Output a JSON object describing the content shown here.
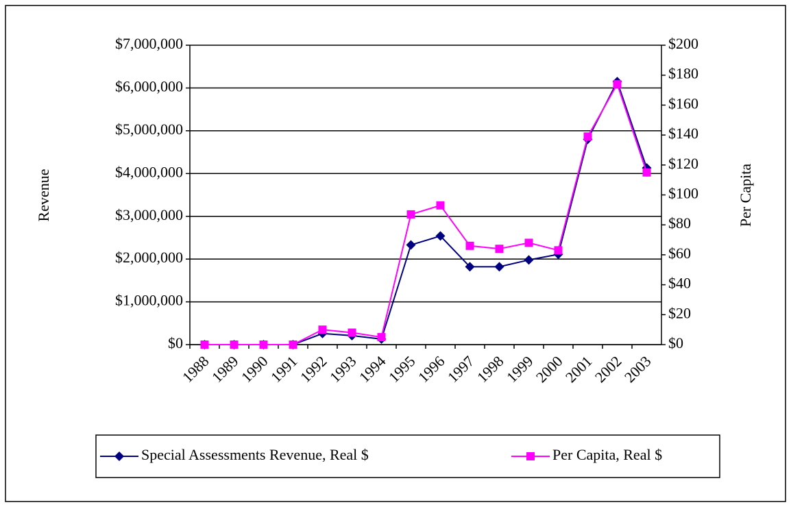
{
  "chart_data": {
    "type": "line",
    "categories": [
      "1988",
      "1989",
      "1990",
      "1991",
      "1992",
      "1993",
      "1994",
      "1995",
      "1996",
      "1997",
      "1998",
      "1999",
      "2000",
      "2001",
      "2002",
      "2003"
    ],
    "y_label": "Revenue",
    "y2_label": "Per Capita",
    "series": [
      {
        "name": "Special Assessments Revenue, Real $",
        "color": "#000080",
        "marker": "diamond",
        "values": [
          0,
          0,
          0,
          0,
          260000,
          210000,
          130000,
          2330000,
          2540000,
          1820000,
          1820000,
          1980000,
          2110000,
          4800000,
          6150000,
          4130000
        ]
      },
      {
        "name": "Per Capita, Real $",
        "color": "#ff00ff",
        "marker": "square",
        "axis": "y2",
        "values": [
          0,
          0,
          0,
          0,
          10,
          8,
          5,
          87,
          93,
          66,
          64,
          68,
          63,
          139,
          174,
          115
        ]
      }
    ],
    "ylim": [
      0,
      7000000
    ],
    "yticks": [
      {
        "value": 0,
        "label": "$0"
      },
      {
        "value": 1000000,
        "label": "$1,000,000"
      },
      {
        "value": 2000000,
        "label": "$2,000,000"
      },
      {
        "value": 3000000,
        "label": "$3,000,000"
      },
      {
        "value": 4000000,
        "label": "$4,000,000"
      },
      {
        "value": 5000000,
        "label": "$5,000,000"
      },
      {
        "value": 6000000,
        "label": "$6,000,000"
      },
      {
        "value": 7000000,
        "label": "$7,000,000"
      }
    ],
    "y2lim": [
      0,
      200
    ],
    "y2ticks": [
      {
        "value": 0,
        "label": "$0"
      },
      {
        "value": 20,
        "label": "$20"
      },
      {
        "value": 40,
        "label": "$40"
      },
      {
        "value": 60,
        "label": "$60"
      },
      {
        "value": 80,
        "label": "$80"
      },
      {
        "value": 100,
        "label": "$100"
      },
      {
        "value": 120,
        "label": "$120"
      },
      {
        "value": 140,
        "label": "$140"
      },
      {
        "value": 160,
        "label": "$160"
      },
      {
        "value": 180,
        "label": "$180"
      },
      {
        "value": 200,
        "label": "$200"
      }
    ],
    "grid": true,
    "legend": "bottom"
  }
}
